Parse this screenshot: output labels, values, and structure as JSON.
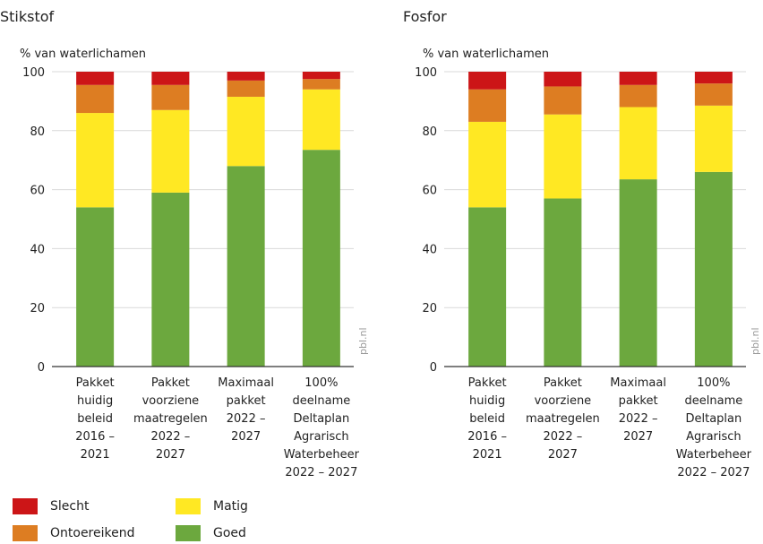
{
  "colors": {
    "slecht": "#cc1517",
    "ontoereikend": "#dd7d22",
    "matig": "#ffe823",
    "goed": "#6ca83e",
    "axis": "#333333",
    "grid": "#d9d9d9",
    "text": "#222222",
    "watermark": "#999999"
  },
  "legend": [
    {
      "key": "slecht",
      "label": "Slecht"
    },
    {
      "key": "ontoereikend",
      "label": "Ontoereikend"
    },
    {
      "key": "matig",
      "label": "Matig"
    },
    {
      "key": "goed",
      "label": "Goed"
    }
  ],
  "chart_data": [
    {
      "type": "bar",
      "stacked": true,
      "title": "Stikstof",
      "ylabel": "% van waterlichamen",
      "ylim": [
        0,
        100
      ],
      "yticks": [
        0,
        20,
        40,
        60,
        80,
        100
      ],
      "watermark": "pbl.nl",
      "categories": [
        [
          "Pakket",
          "huidig",
          "beleid",
          "2016 –",
          "2021"
        ],
        [
          "Pakket",
          "voorziene",
          "maatregelen",
          "2022 –",
          "2027"
        ],
        [
          "Maximaal",
          "pakket",
          "2022 –",
          "2027"
        ],
        [
          "100%",
          "deelname",
          "Deltaplan",
          "Agrarisch",
          "Waterbeheer",
          "2022 – 2027"
        ]
      ],
      "series": [
        {
          "name": "Goed",
          "key": "goed",
          "values": [
            54,
            59,
            68,
            73.5
          ]
        },
        {
          "name": "Matig",
          "key": "matig",
          "values": [
            32,
            28,
            23.5,
            20.5
          ]
        },
        {
          "name": "Ontoereikend",
          "key": "ontoereikend",
          "values": [
            9.5,
            8.5,
            5.5,
            3.5
          ]
        },
        {
          "name": "Slecht",
          "key": "slecht",
          "values": [
            4.5,
            4.5,
            3,
            2.5
          ]
        }
      ]
    },
    {
      "type": "bar",
      "stacked": true,
      "title": "Fosfor",
      "ylabel": "% van waterlichamen",
      "ylim": [
        0,
        100
      ],
      "yticks": [
        0,
        20,
        40,
        60,
        80,
        100
      ],
      "watermark": "pbl.nl",
      "categories": [
        [
          "Pakket",
          "huidig",
          "beleid",
          "2016 –",
          "2021"
        ],
        [
          "Pakket",
          "voorziene",
          "maatregelen",
          "2022 –",
          "2027"
        ],
        [
          "Maximaal",
          "pakket",
          "2022 –",
          "2027"
        ],
        [
          "100%",
          "deelname",
          "Deltaplan",
          "Agrarisch",
          "Waterbeheer",
          "2022 – 2027"
        ]
      ],
      "series": [
        {
          "name": "Goed",
          "key": "goed",
          "values": [
            54,
            57,
            63.5,
            66
          ]
        },
        {
          "name": "Matig",
          "key": "matig",
          "values": [
            29,
            28.5,
            24.5,
            22.5
          ]
        },
        {
          "name": "Ontoereikend",
          "key": "ontoereikend",
          "values": [
            11,
            9.5,
            7.5,
            7.5
          ]
        },
        {
          "name": "Slecht",
          "key": "slecht",
          "values": [
            6,
            5,
            4.5,
            4
          ]
        }
      ]
    }
  ]
}
